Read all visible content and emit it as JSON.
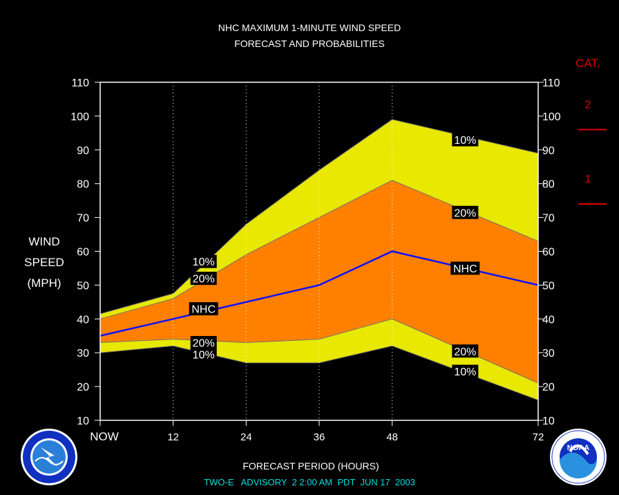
{
  "header": {
    "title_line1": "NHC MAXIMUM 1-MINUTE WIND SPEED",
    "title_line2": "FORECAST AND PROBABILITIES"
  },
  "footer": {
    "xlabel": "FORECAST PERIOD (HOURS)",
    "advisory": "TWO-E   ADVISORY  2 2:00 AM  PDT  JUN 17  2003"
  },
  "colors": {
    "outer_band": "#e8e800",
    "inner_band": "#ff8000",
    "nhc_line": "#1010ff",
    "category": "#e00000",
    "footer_text": "#00e0e0"
  },
  "logos": {
    "left": "NATIONAL WEATHER SERVICE",
    "right": "NOAA"
  },
  "chart_data": {
    "type": "area",
    "ylabel": [
      "WIND",
      "SPEED",
      "(MPH)"
    ],
    "xlabel": "FORECAST PERIOD (HOURS)",
    "xlim": [
      0,
      72
    ],
    "ylim": [
      10,
      110
    ],
    "yticks": [
      10,
      20,
      30,
      40,
      50,
      60,
      70,
      80,
      90,
      100,
      110
    ],
    "xticks": [
      {
        "value": 0,
        "label": "NOW"
      },
      {
        "value": 12,
        "label": "12"
      },
      {
        "value": 24,
        "label": "24"
      },
      {
        "value": 36,
        "label": "36"
      },
      {
        "value": 48,
        "label": "48"
      },
      {
        "value": 72,
        "label": "72"
      }
    ],
    "x": [
      0,
      12,
      24,
      36,
      48,
      72
    ],
    "series": [
      {
        "name": "10%",
        "upper": [
          41.5,
          47.5,
          68,
          84,
          99,
          89
        ],
        "lower": [
          30,
          32,
          27,
          27,
          32,
          16
        ]
      },
      {
        "name": "20%",
        "upper": [
          40,
          46,
          59,
          70,
          81,
          63
        ],
        "lower": [
          33,
          34,
          33,
          34,
          40,
          21
        ]
      },
      {
        "name": "NHC",
        "values": [
          35,
          40,
          45,
          50,
          60,
          50
        ]
      }
    ],
    "annotations": [
      {
        "text": "10%",
        "x": 17,
        "y": 57
      },
      {
        "text": "20%",
        "x": 17,
        "y": 52
      },
      {
        "text": "NHC",
        "x": 17,
        "y": 43
      },
      {
        "text": "20%",
        "x": 17,
        "y": 33
      },
      {
        "text": "10%",
        "x": 17,
        "y": 29.5
      },
      {
        "text": "10%",
        "x": 60,
        "y": 93
      },
      {
        "text": "20%",
        "x": 60,
        "y": 71.5
      },
      {
        "text": "NHC",
        "x": 60,
        "y": 55
      },
      {
        "text": "20%",
        "x": 60,
        "y": 30.5
      },
      {
        "text": "10%",
        "x": 60,
        "y": 24.5
      }
    ],
    "categories_scale": {
      "title": "CAT.",
      "levels": [
        {
          "label": "2",
          "threshold": 96
        },
        {
          "label": "1",
          "threshold": 74
        }
      ]
    },
    "grid": "dotted vertical at ticks",
    "legend": "none"
  }
}
